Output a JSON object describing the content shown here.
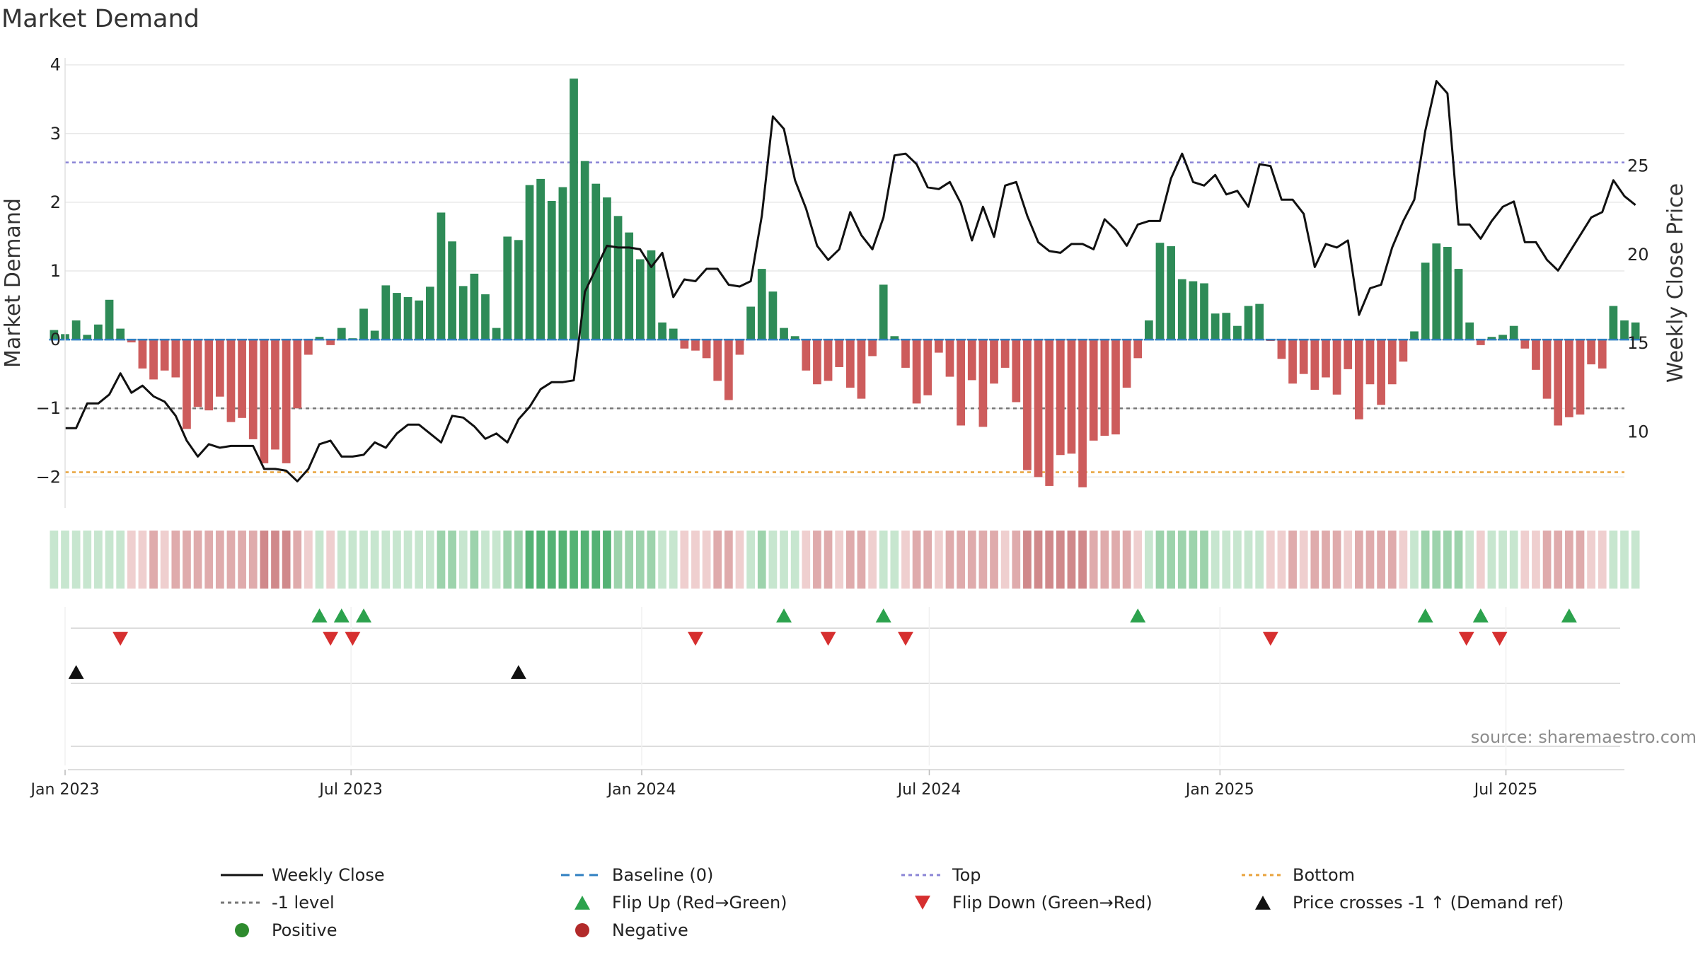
{
  "chart_data": {
    "type": "bar",
    "title": "Market Demand",
    "ylabel": "Market Demand",
    "y2label": "Weekly Close Price",
    "ylim": [
      -2.45,
      4.1
    ],
    "y2lim": [
      5.7,
      31.1
    ],
    "yticks": [
      "−2",
      "−1",
      "0",
      "1",
      "2",
      "3",
      "4"
    ],
    "y2ticks": [
      "10",
      "15",
      "20",
      "25"
    ],
    "x_start": "2023-01-01",
    "x_end": "2025-09-14",
    "x_ticks": [
      "Jan 2023",
      "Jul 2023",
      "Jan 2024",
      "Jul 2024",
      "Jan 2025",
      "Jul 2025"
    ],
    "x_tick_dates": [
      "2023-01-01",
      "2023-07-01",
      "2024-01-01",
      "2024-07-01",
      "2025-01-01",
      "2025-07-01"
    ],
    "reference_lines": {
      "top": 2.58,
      "bottom": -1.93,
      "minus_one_level": -1.0,
      "baseline": 0
    },
    "series": [
      {
        "name": "Market Demand",
        "style": "bar",
        "start_date": "2022-12-25",
        "interval_days": 7,
        "values": [
          0.14,
          0.08,
          0.28,
          0.07,
          0.22,
          0.58,
          0.16,
          -0.04,
          -0.42,
          -0.58,
          -0.45,
          -0.55,
          -1.3,
          -0.98,
          -1.03,
          -0.83,
          -1.2,
          -1.14,
          -1.45,
          -1.8,
          -1.6,
          -1.8,
          -1.0,
          -0.22,
          0.04,
          -0.08,
          0.17,
          0.02,
          0.45,
          0.13,
          0.79,
          0.68,
          0.62,
          0.57,
          0.77,
          1.85,
          1.43,
          0.78,
          0.96,
          0.66,
          0.17,
          1.5,
          1.45,
          2.25,
          2.34,
          2.02,
          2.22,
          3.8,
          2.6,
          2.27,
          2.07,
          1.8,
          1.56,
          1.17,
          1.3,
          0.25,
          0.16,
          -0.13,
          -0.16,
          -0.27,
          -0.6,
          -0.88,
          -0.22,
          0.48,
          1.03,
          0.7,
          0.17,
          0.05,
          -0.45,
          -0.65,
          -0.6,
          -0.4,
          -0.7,
          -0.86,
          -0.24,
          0.8,
          0.05,
          -0.41,
          -0.93,
          -0.81,
          -0.19,
          -0.54,
          -1.25,
          -0.59,
          -1.27,
          -0.64,
          -0.41,
          -0.91,
          -1.9,
          -2.0,
          -2.13,
          -1.68,
          -1.66,
          -2.15,
          -1.47,
          -1.4,
          -1.38,
          -0.7,
          -0.27,
          0.28,
          1.41,
          1.36,
          0.88,
          0.85,
          0.82,
          0.38,
          0.39,
          0.2,
          0.49,
          0.52,
          -0.02,
          -0.28,
          -0.64,
          -0.5,
          -0.73,
          -0.55,
          -0.8,
          -0.43,
          -1.16,
          -0.65,
          -0.95,
          -0.65,
          -0.32,
          0.12,
          1.12,
          1.4,
          1.35,
          1.03,
          0.25,
          -0.08,
          0.04,
          0.07,
          0.2,
          -0.13,
          -0.44,
          -0.86,
          -1.25,
          -1.13,
          -1.09,
          -0.36,
          -0.42,
          0.49,
          0.28,
          0.25
        ]
      },
      {
        "name": "Weekly Close",
        "style": "line",
        "axis": "right",
        "start_date": "2023-01-01",
        "interval_days": 7,
        "values": [
          10.2,
          10.2,
          11.6,
          11.6,
          12.1,
          13.3,
          12.2,
          12.6,
          12.0,
          11.7,
          10.9,
          9.5,
          8.6,
          9.3,
          9.1,
          9.2,
          9.2,
          9.2,
          7.9,
          7.9,
          7.8,
          7.2,
          7.9,
          9.3,
          9.5,
          8.6,
          8.6,
          8.7,
          9.4,
          9.1,
          9.9,
          10.4,
          10.4,
          9.9,
          9.4,
          10.9,
          10.8,
          10.3,
          9.6,
          9.9,
          9.4,
          10.7,
          11.4,
          12.4,
          12.8,
          12.8,
          12.9,
          17.9,
          19.2,
          20.5,
          20.4,
          20.4,
          20.3,
          19.3,
          20.1,
          17.6,
          18.6,
          18.5,
          19.2,
          19.2,
          18.3,
          18.2,
          18.5,
          22.2,
          27.8,
          27.1,
          24.2,
          22.6,
          20.5,
          19.7,
          20.3,
          22.4,
          21.1,
          20.3,
          22.1,
          25.6,
          25.7,
          25.1,
          23.8,
          23.7,
          24.1,
          22.9,
          20.8,
          22.7,
          21.0,
          23.9,
          24.1,
          22.2,
          20.7,
          20.2,
          20.1,
          20.6,
          20.6,
          20.3,
          22.0,
          21.4,
          20.5,
          21.7,
          21.9,
          21.9,
          24.3,
          25.7,
          24.1,
          23.9,
          24.5,
          23.4,
          23.6,
          22.7,
          25.1,
          25.0,
          23.1,
          23.1,
          22.3,
          19.3,
          20.6,
          20.4,
          20.8,
          16.6,
          18.1,
          18.3,
          20.4,
          21.9,
          23.1,
          27.0,
          29.8,
          29.1,
          21.7,
          21.7,
          20.9,
          21.9,
          22.7,
          23.0,
          20.7,
          20.7,
          19.7,
          19.1,
          20.1,
          21.1,
          22.1,
          22.4,
          24.2,
          23.3,
          22.8
        ]
      }
    ],
    "band_categories": {
      "pos_strong": "#54b274",
      "pos_med": "#9dd3ac",
      "pos_weak": "#c7e6cf",
      "neg_strong": "#d0898b",
      "neg_med": "#dfabac",
      "neg_weak": "#efcfcf"
    },
    "flip_up_dates": [
      "2023-06-11",
      "2023-06-25",
      "2023-07-09",
      "2024-03-31",
      "2024-06-02",
      "2024-11-10",
      "2025-05-11",
      "2025-06-15",
      "2025-08-10"
    ],
    "flip_down_dates": [
      "2023-02-05",
      "2023-06-18",
      "2023-07-02",
      "2024-02-04",
      "2024-04-28",
      "2024-06-16",
      "2025-02-02",
      "2025-06-06",
      "2025-06-27"
    ],
    "price_cross_dates": [
      "2023-01-08",
      "2023-10-15"
    ],
    "legend": [
      {
        "label": "Weekly Close",
        "marker": "solid-line",
        "color": "#111111"
      },
      {
        "label": "Baseline (0)",
        "marker": "dashed-line",
        "color": "#2f7fc1"
      },
      {
        "label": "Top",
        "marker": "dotted-line",
        "color": "#8a84d6"
      },
      {
        "label": "Bottom",
        "marker": "dotted-line",
        "color": "#e8a33c"
      },
      {
        "label": "-1 level",
        "marker": "dotted-line",
        "color": "#777777"
      },
      {
        "label": "Flip Up (Red→Green)",
        "marker": "triangle-up",
        "color": "#2ca24d"
      },
      {
        "label": "Flip Down (Green→Red)",
        "marker": "triangle-down",
        "color": "#d62f2f"
      },
      {
        "label": "Price crosses -1 ↑ (Demand ref)",
        "marker": "triangle-up",
        "color": "#111111"
      },
      {
        "label": "Positive",
        "marker": "circle",
        "color": "#2e8b2e"
      },
      {
        "label": "Negative",
        "marker": "circle",
        "color": "#b22a2a"
      }
    ],
    "legend_position": "bottom-center"
  },
  "colors": {
    "pos_bar": "#2e8b57",
    "neg_bar": "#cd5c5c",
    "price_line": "#111111",
    "baseline": "#2f7fc1",
    "top_line": "#8a84d6",
    "bottom_line": "#e8a33c",
    "level_line": "#777777",
    "flip_up": "#2ca24d",
    "flip_down": "#d62f2f",
    "cross": "#111111",
    "grid": "#e8e8e8"
  },
  "source": "source: sharemaestro.com"
}
